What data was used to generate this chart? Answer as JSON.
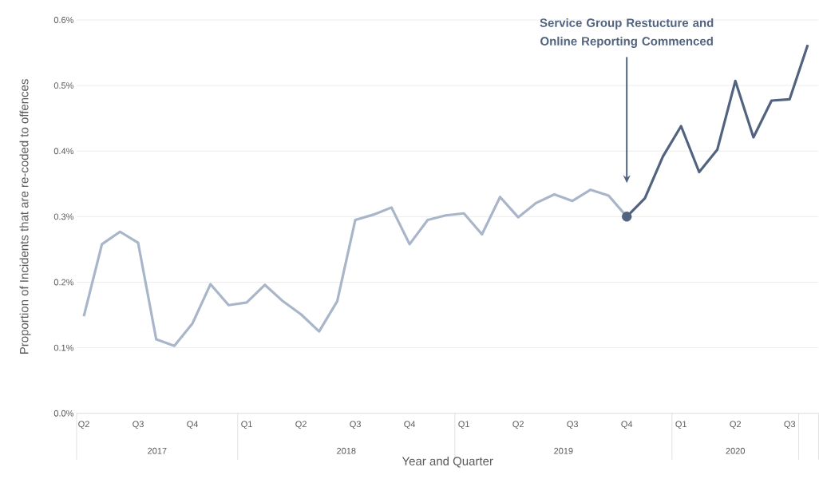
{
  "chart_data": {
    "type": "line",
    "xlabel": "Year and Quarter",
    "ylabel": "Proportion of Incidents that are re-coded to offences",
    "categories": [
      "Q2",
      null,
      null,
      "Q3",
      null,
      null,
      "Q4",
      null,
      null,
      "Q1",
      null,
      null,
      "Q2",
      null,
      null,
      "Q3",
      null,
      null,
      "Q4",
      null,
      null,
      "Q1",
      null,
      null,
      "Q2",
      null,
      null,
      "Q3",
      null,
      null,
      "Q4",
      null,
      null,
      "Q1",
      null,
      null,
      "Q2",
      null,
      null,
      "Q3",
      null
    ],
    "series": [
      {
        "color": "#a9b6c9",
        "values": [
          0.148,
          0.258,
          0.277,
          0.26,
          0.113,
          0.103,
          0.137,
          0.197,
          0.165,
          0.169,
          0.196,
          0.171,
          0.151,
          0.125,
          0.171,
          0.295,
          0.303,
          0.314,
          0.258,
          0.295,
          0.302,
          0.305,
          0.273,
          0.33,
          0.299,
          0.321,
          0.334,
          0.324,
          0.341,
          0.332,
          0.3,
          null,
          null,
          null,
          null,
          null,
          null,
          null,
          null,
          null,
          null
        ]
      },
      {
        "color": "#51637f",
        "values": [
          null,
          null,
          null,
          null,
          null,
          null,
          null,
          null,
          null,
          null,
          null,
          null,
          null,
          null,
          null,
          null,
          null,
          null,
          null,
          null,
          null,
          null,
          null,
          null,
          null,
          null,
          null,
          null,
          null,
          null,
          0.3,
          0.328,
          0.392,
          0.438,
          0.368,
          0.402,
          0.507,
          0.421,
          0.477,
          0.479,
          0.562
        ]
      },
      {
        "type": "scatter",
        "marker": "circle",
        "color": "#51637f",
        "values": [
          null,
          null,
          null,
          null,
          null,
          null,
          null,
          null,
          null,
          null,
          null,
          null,
          null,
          null,
          null,
          null,
          null,
          null,
          null,
          null,
          null,
          null,
          null,
          null,
          null,
          null,
          null,
          null,
          null,
          null,
          0.3,
          null,
          null,
          null,
          null,
          null,
          null,
          null,
          null,
          null,
          null
        ]
      }
    ],
    "ylim": [
      0,
      0.6
    ],
    "yticks": [
      {
        "value": 0,
        "label": "0.0%"
      },
      {
        "value": 0.1,
        "label": "0.1%"
      },
      {
        "value": 0.2,
        "label": "0.2%"
      },
      {
        "value": 0.3,
        "label": "0.3%"
      },
      {
        "value": 0.4,
        "label": "0.4%"
      },
      {
        "value": 0.5,
        "label": "0.5%"
      },
      {
        "value": 0.6,
        "label": "0.6%"
      }
    ],
    "grid": "y",
    "line_style": "solid",
    "annotations": [
      "Service Group Restucture and Online Reporting Commenced",
      "2017",
      "2018",
      "2019",
      "2020"
    ]
  }
}
